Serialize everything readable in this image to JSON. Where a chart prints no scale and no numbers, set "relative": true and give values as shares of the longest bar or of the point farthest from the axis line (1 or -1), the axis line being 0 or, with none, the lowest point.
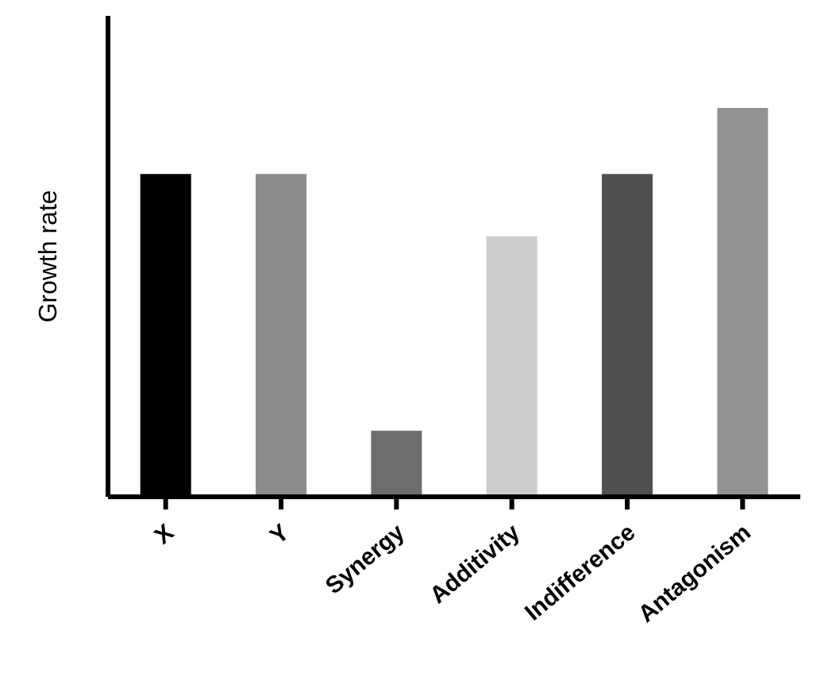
{
  "chart_data": {
    "type": "bar",
    "ylabel": "Growth rate",
    "relative": true,
    "categories": [
      "X",
      "Y",
      "Synergy",
      "Additivity",
      "Indifference",
      "Antagonism"
    ],
    "values": [
      0.83,
      0.83,
      0.17,
      0.67,
      0.83,
      1
    ],
    "colors": [
      "#000000",
      "#8c8c8c",
      "#6e6e6e",
      "#cccccc",
      "#505050",
      "#939393"
    ],
    "grid": false,
    "legend": false
  }
}
